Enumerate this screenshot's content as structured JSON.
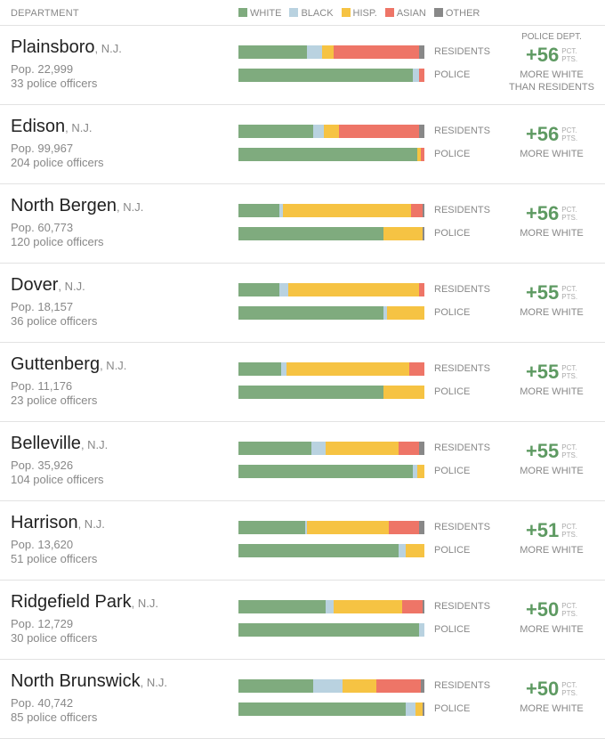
{
  "header": {
    "department_label": "DEPARTMENT",
    "legend": [
      {
        "key": "white",
        "label": "WHITE",
        "color": "#7fab7e"
      },
      {
        "key": "black",
        "label": "BLACK",
        "color": "#b9d2e0"
      },
      {
        "key": "hisp",
        "label": "HISP.",
        "color": "#f6c343"
      },
      {
        "key": "asian",
        "label": "ASIAN",
        "color": "#ee7567"
      },
      {
        "key": "other",
        "label": "OTHER",
        "color": "#888888"
      }
    ]
  },
  "labels": {
    "residents": "RESIDENTS",
    "police": "POLICE",
    "pct": "PCT.",
    "pts": "PTS.",
    "first_top": "POLICE DEPT.",
    "first_bottom_1": "MORE WHITE",
    "first_bottom_2": "THAN RESIDENTS",
    "more_white": "MORE WHITE"
  },
  "chart_data": {
    "type": "bar",
    "stacked": true,
    "normalized": true,
    "segment_order": [
      "white",
      "black",
      "hisp",
      "asian",
      "other"
    ],
    "rows": [
      {
        "city": "Plainsboro",
        "state": ", N.J.",
        "population": "Pop. 22,999",
        "officers": "33 police officers",
        "difference": "+56",
        "residents": [
          37,
          8,
          6,
          46,
          3
        ],
        "police": [
          94,
          3,
          0,
          3,
          0
        ]
      },
      {
        "city": "Edison",
        "state": ", N.J.",
        "population": "Pop. 99,967",
        "officers": "204 police officers",
        "difference": "+56",
        "residents": [
          40,
          6,
          8,
          43,
          3
        ],
        "police": [
          96,
          0,
          2,
          2,
          0
        ]
      },
      {
        "city": "North Bergen",
        "state": ", N.J.",
        "population": "Pop. 60,773",
        "officers": "120 police officers",
        "difference": "+56",
        "residents": [
          22,
          2,
          69,
          6,
          1
        ],
        "police": [
          78,
          0,
          21,
          0,
          1
        ]
      },
      {
        "city": "Dover",
        "state": ", N.J.",
        "population": "Pop. 18,157",
        "officers": "36 police officers",
        "difference": "+55",
        "residents": [
          22,
          5,
          70,
          3,
          0
        ],
        "police": [
          78,
          2,
          20,
          0,
          0
        ]
      },
      {
        "city": "Guttenberg",
        "state": ", N.J.",
        "population": "Pop. 11,176",
        "officers": "23 police officers",
        "difference": "+55",
        "residents": [
          23,
          3,
          66,
          8,
          0
        ],
        "police": [
          78,
          0,
          22,
          0,
          0
        ]
      },
      {
        "city": "Belleville",
        "state": ", N.J.",
        "population": "Pop. 35,926",
        "officers": "104 police officers",
        "difference": "+55",
        "residents": [
          39,
          8,
          39,
          11,
          3
        ],
        "police": [
          94,
          2,
          4,
          0,
          0
        ]
      },
      {
        "city": "Harrison",
        "state": ", N.J.",
        "population": "Pop. 13,620",
        "officers": "51 police officers",
        "difference": "+51",
        "residents": [
          36,
          1,
          44,
          16,
          3
        ],
        "police": [
          86,
          4,
          10,
          0,
          0
        ]
      },
      {
        "city": "Ridgefield Park",
        "state": ", N.J.",
        "population": "Pop. 12,729",
        "officers": "30 police officers",
        "difference": "+50",
        "residents": [
          47,
          4,
          37,
          11,
          1
        ],
        "police": [
          97,
          3,
          0,
          0,
          0
        ]
      },
      {
        "city": "North Brunswick",
        "state": ", N.J.",
        "population": "Pop. 40,742",
        "officers": "85 police officers",
        "difference": "+50",
        "residents": [
          40,
          16,
          18,
          24,
          2
        ],
        "police": [
          90,
          5,
          4,
          0,
          1
        ]
      }
    ]
  }
}
